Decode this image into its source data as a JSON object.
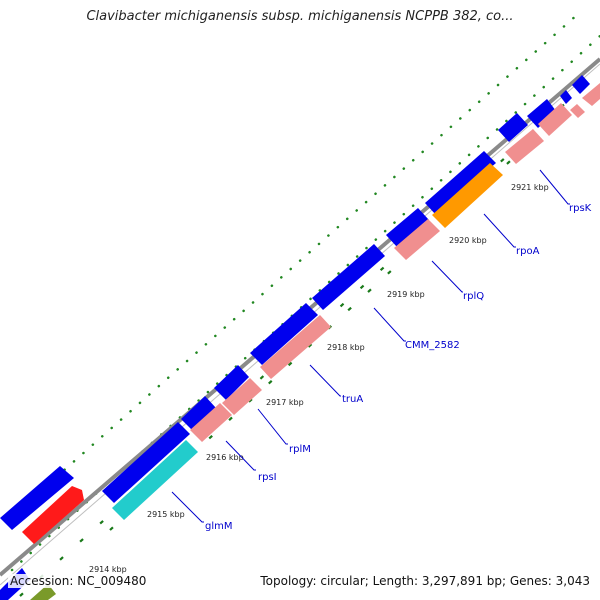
{
  "title": "Clavibacter michiganensis subsp. michiganensis NCPPB 382, co...",
  "colors": {
    "backbone": "#8a8a8a",
    "cds_forward": "#0000ee",
    "cds_reverse_rrna": "#f08f8f",
    "trna": "#ff9900",
    "other": "#22cccc",
    "red": "#ff1a1a",
    "gc_skew": "#228822",
    "label": "#0000cc"
  },
  "ticks": [
    "2914 kbp",
    "2915 kbp",
    "2916 kbp",
    "2917 kbp",
    "2918 kbp",
    "2919 kbp",
    "2920 kbp",
    "2921 kbp"
  ],
  "genes": [
    {
      "name": "glmM"
    },
    {
      "name": "rpsI"
    },
    {
      "name": "rplM"
    },
    {
      "name": "truA"
    },
    {
      "name": "CMM_2582"
    },
    {
      "name": "rplQ"
    },
    {
      "name": "rpoA"
    },
    {
      "name": "rpsK"
    }
  ],
  "footer": {
    "accession": "Accession: NC_009480",
    "summary": "Topology: circular; Length: 3,297,891 bp; Genes: 3,043"
  }
}
